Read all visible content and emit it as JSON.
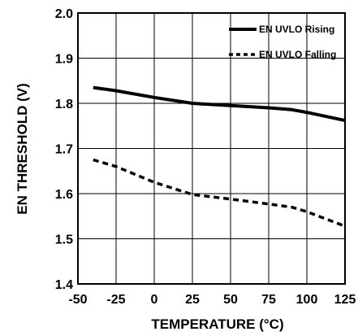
{
  "chart_data": {
    "type": "line",
    "xlabel": "TEMPERATURE (°C)",
    "ylabel": "EN THRESHOLD (V)",
    "xlim": [
      -50,
      125
    ],
    "ylim": [
      1.4,
      2.0
    ],
    "x_ticks": [
      -50,
      -25,
      0,
      25,
      50,
      75,
      100,
      125
    ],
    "x_tick_labels": [
      "-50",
      "-25",
      "0",
      "25",
      "50",
      "75",
      "100",
      "125"
    ],
    "y_ticks": [
      1.4,
      1.5,
      1.6,
      1.7,
      1.8,
      1.9,
      2.0
    ],
    "y_tick_labels": [
      "1.4",
      "1.5",
      "1.6",
      "1.7",
      "1.8",
      "1.9",
      "2.0"
    ],
    "grid": true,
    "legend_position": "top-right",
    "series": [
      {
        "name": "EN UVLO Rising",
        "style": "solid",
        "color": "#000000",
        "x": [
          -40,
          -25,
          0,
          25,
          50,
          75,
          90,
          100,
          125
        ],
        "y": [
          1.835,
          1.828,
          1.813,
          1.8,
          1.795,
          1.79,
          1.786,
          1.78,
          1.762
        ]
      },
      {
        "name": "EN UVLO Falling",
        "style": "dashed",
        "color": "#000000",
        "x": [
          -40,
          -25,
          0,
          25,
          50,
          75,
          90,
          100,
          125
        ],
        "y": [
          1.675,
          1.66,
          1.625,
          1.598,
          1.588,
          1.577,
          1.57,
          1.56,
          1.528
        ]
      }
    ]
  }
}
